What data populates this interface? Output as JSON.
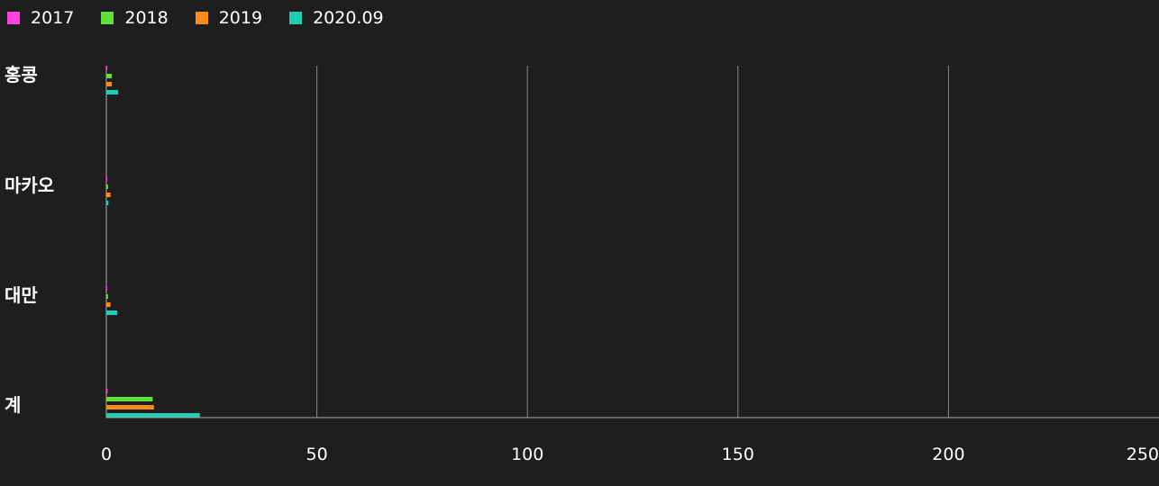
{
  "chart_data": {
    "type": "bar",
    "orientation": "horizontal",
    "categories": [
      "홍콩",
      "마카오",
      "대만",
      "계"
    ],
    "series": [
      {
        "name": "2017",
        "color": "#ff44dd",
        "values": [
          0.1,
          0.05,
          0.05,
          0.3
        ]
      },
      {
        "name": "2018",
        "color": "#5fe03a",
        "values": [
          1.3,
          0.4,
          0.4,
          11.0
        ]
      },
      {
        "name": "2019",
        "color": "#ff8c1a",
        "values": [
          1.3,
          1.0,
          1.0,
          11.3
        ]
      },
      {
        "name": "2020.09",
        "color": "#1ecfb5",
        "values": [
          2.8,
          0.5,
          2.6,
          22.2
        ]
      }
    ],
    "xlim": [
      0,
      250
    ],
    "xticks": [
      "0",
      "50",
      "100",
      "150",
      "200",
      "250"
    ],
    "grid": true,
    "legend_position": "top-left",
    "title": "",
    "xlabel": "",
    "ylabel": ""
  }
}
